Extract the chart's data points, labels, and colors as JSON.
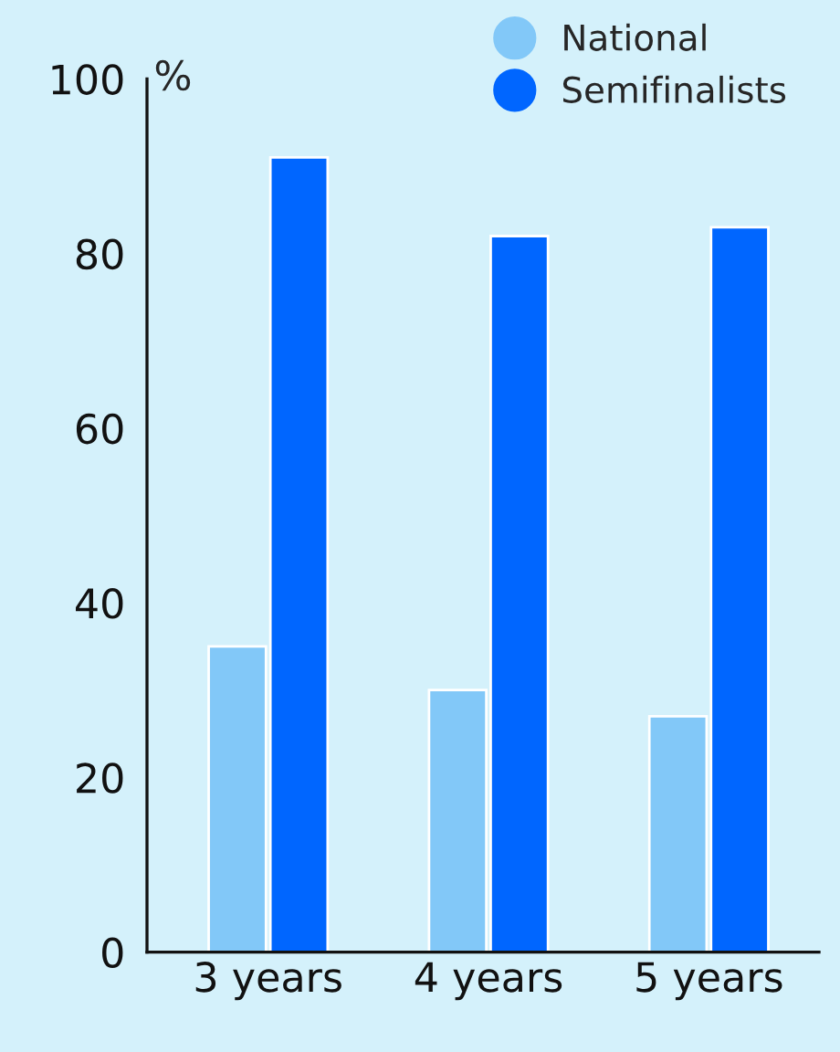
{
  "chart_data": {
    "type": "bar",
    "ylabel": "%",
    "categories": [
      "3 years",
      "4 years",
      "5 years"
    ],
    "series": [
      {
        "name": "National",
        "color": "#82c8f8",
        "values": [
          35,
          30,
          27
        ]
      },
      {
        "name": "Semifinalists",
        "color": "#0066ff",
        "values": [
          91,
          82,
          83
        ]
      }
    ],
    "ylim": [
      0,
      100
    ],
    "yticks": [
      0,
      20,
      40,
      60,
      80,
      100
    ],
    "grid": false,
    "legend": "top right"
  }
}
